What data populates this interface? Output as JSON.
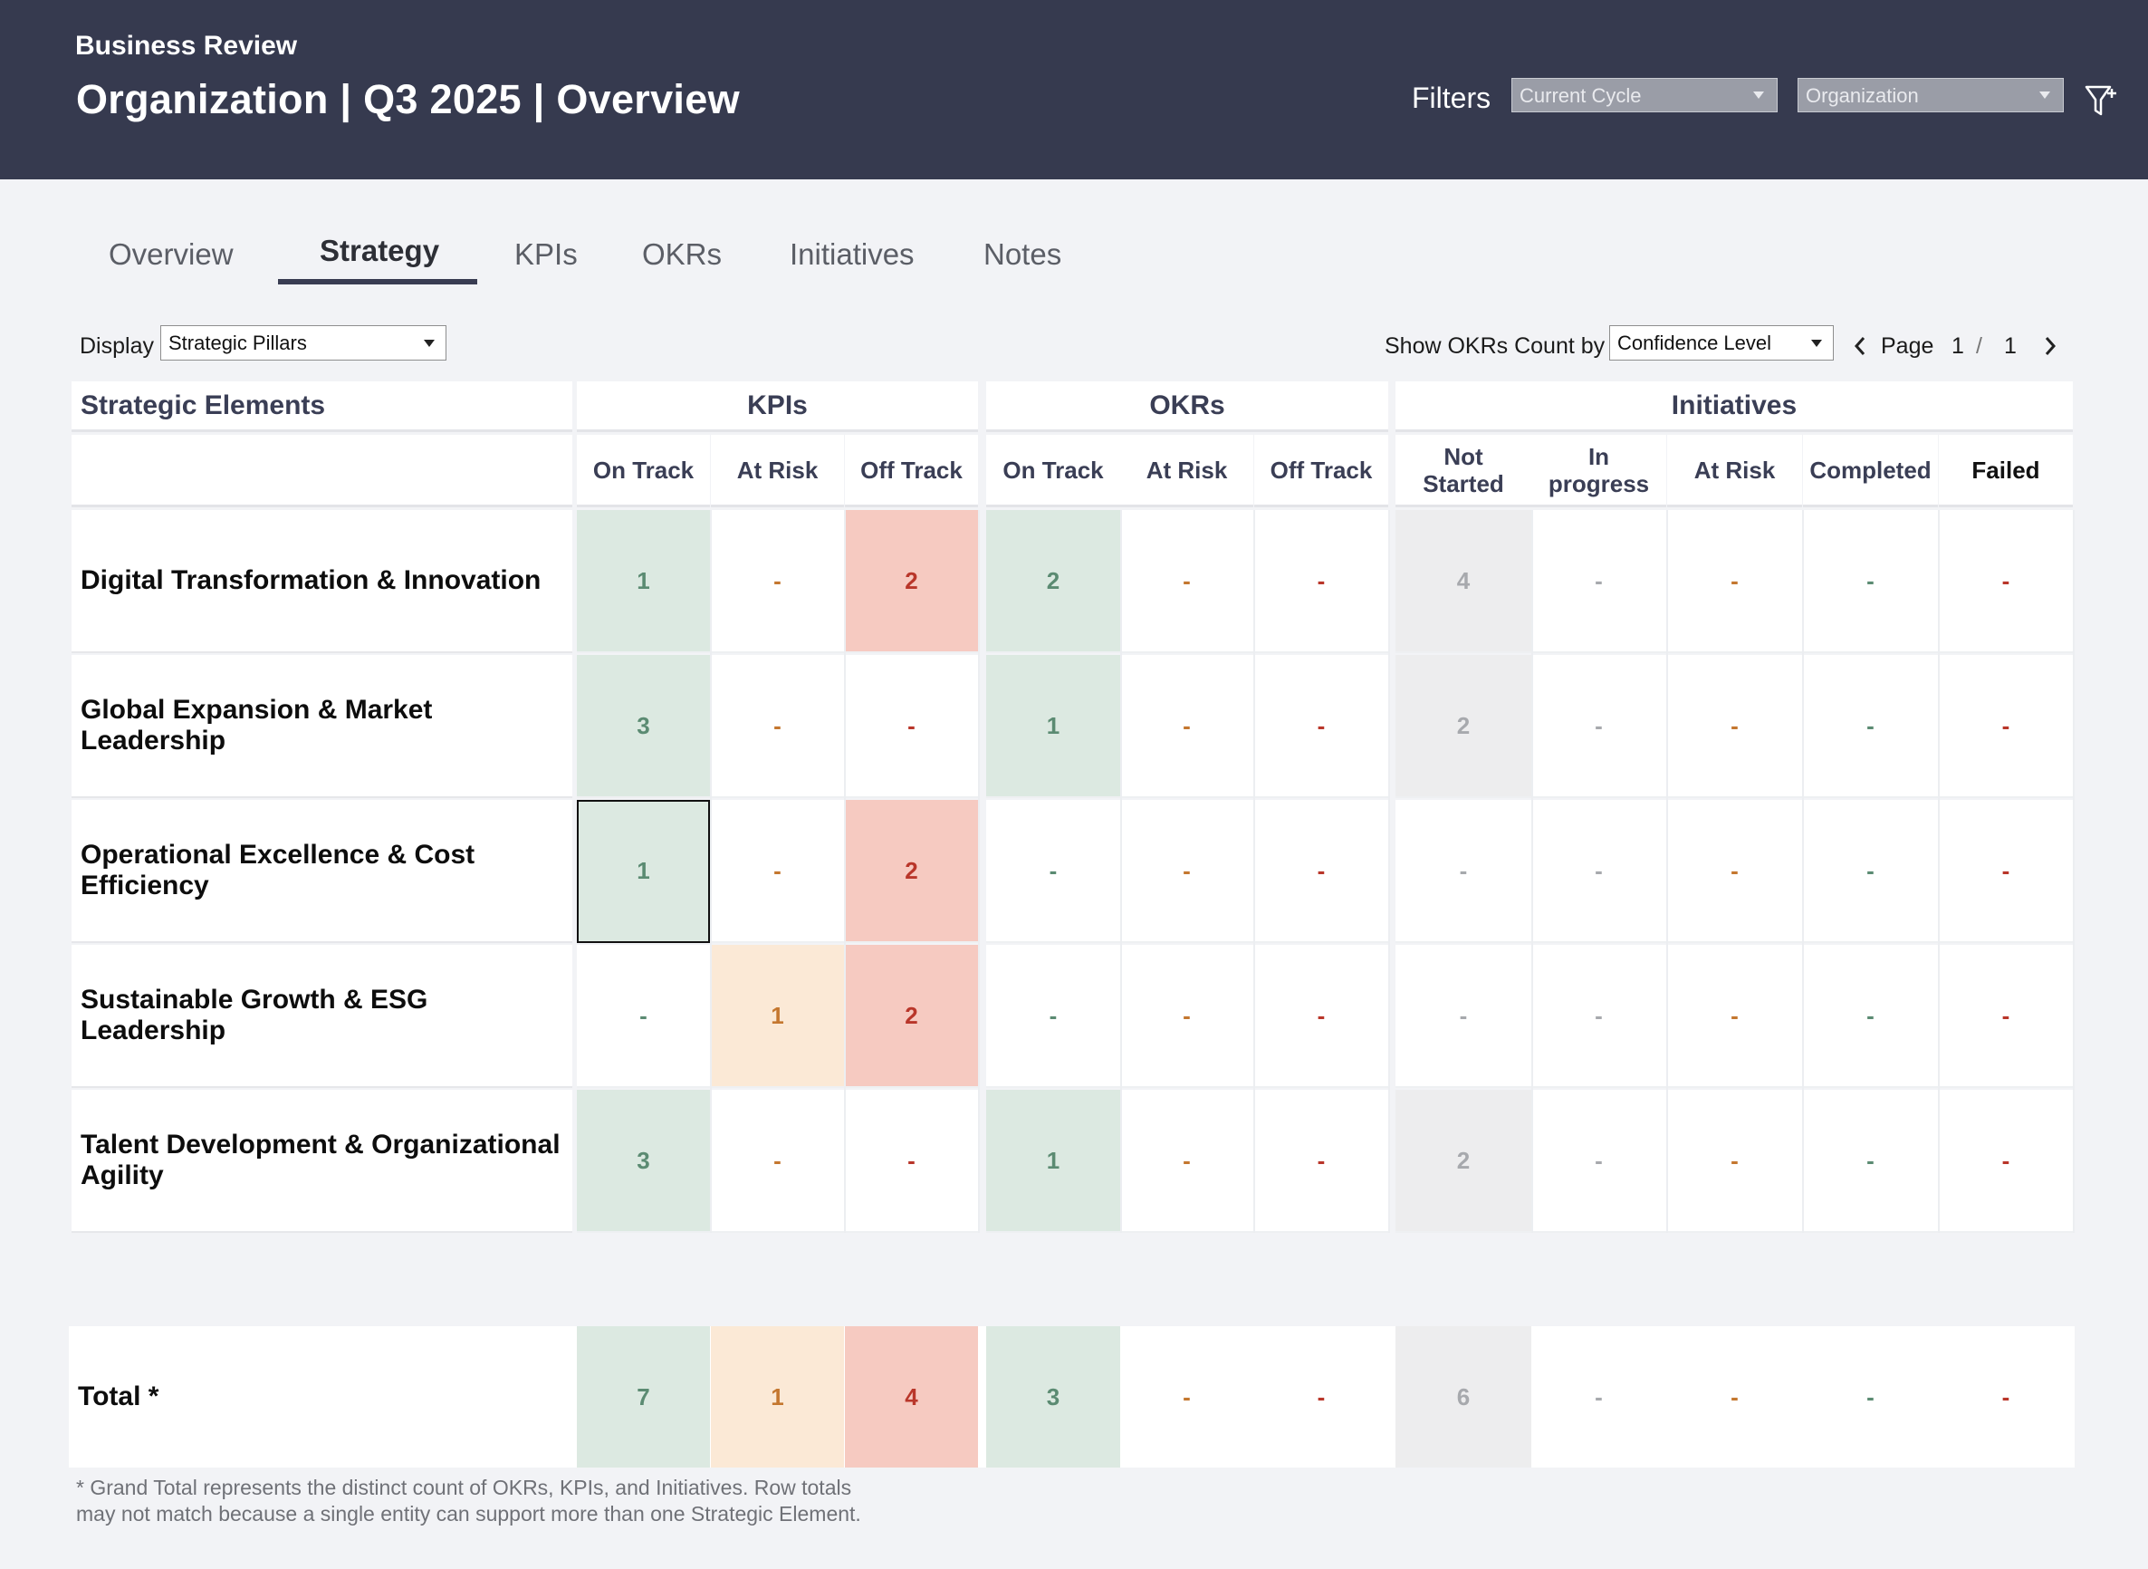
{
  "header": {
    "subtitle": "Business Review",
    "title": "Organization | Q3 2025 | Overview",
    "filters_label": "Filters",
    "filter_cycle": "Current Cycle",
    "filter_org": "Organization"
  },
  "tabs": [
    {
      "label": "Overview"
    },
    {
      "label": "Strategy",
      "active": true
    },
    {
      "label": "KPIs"
    },
    {
      "label": "OKRs"
    },
    {
      "label": "Initiatives"
    },
    {
      "label": "Notes"
    }
  ],
  "controls": {
    "display_label": "Display",
    "display_value": "Strategic Pillars",
    "okr_count_label": "Show OKRs Count by",
    "okr_count_value": "Confidence Level",
    "page_label": "Page",
    "page_current": "1",
    "page_sep": "/",
    "page_total": "1"
  },
  "table": {
    "first_col_header": "Strategic Elements",
    "groups": [
      "KPIs",
      "OKRs",
      "Initiatives"
    ],
    "columns": [
      "On Track",
      "At Risk",
      "Off Track",
      "On Track",
      "At Risk",
      "Off Track",
      "Not Started",
      "In progress",
      "At Risk",
      "Completed",
      "Failed"
    ],
    "rows": [
      {
        "label": "Digital Transformation & Innovation",
        "values": [
          "1",
          "-",
          "2",
          "2",
          "-",
          "-",
          "4",
          "-",
          "-",
          "-",
          "-"
        ]
      },
      {
        "label": "Global Expansion & Market Leadership",
        "values": [
          "3",
          "-",
          "-",
          "1",
          "-",
          "-",
          "2",
          "-",
          "-",
          "-",
          "-"
        ]
      },
      {
        "label": "Operational Excellence & Cost Efficiency",
        "values": [
          "1",
          "-",
          "2",
          "-",
          "-",
          "-",
          "-",
          "-",
          "-",
          "-",
          "-"
        ]
      },
      {
        "label": "Sustainable Growth & ESG Leadership",
        "values": [
          "-",
          "1",
          "2",
          "-",
          "-",
          "-",
          "-",
          "-",
          "-",
          "-",
          "-"
        ]
      },
      {
        "label": "Talent Development & Organizational Agility",
        "values": [
          "3",
          "-",
          "-",
          "1",
          "-",
          "-",
          "2",
          "-",
          "-",
          "-",
          "-"
        ]
      }
    ],
    "total": {
      "label": "Total *",
      "values": [
        "7",
        "1",
        "4",
        "3",
        "-",
        "-",
        "6",
        "-",
        "-",
        "-",
        "-"
      ]
    }
  },
  "colors": {
    "header_bg": "#363a4f",
    "on_track": "#5b8b72",
    "at_risk": "#c4772f",
    "off_track": "#b9362a",
    "not_started": "#a7a9ad"
  },
  "footnote": {
    "line1": "* Grand Total represents the distinct count of OKRs, KPIs, and Initiatives. Row totals",
    "line2": "may not match because a single entity can support more than one Strategic Element."
  }
}
